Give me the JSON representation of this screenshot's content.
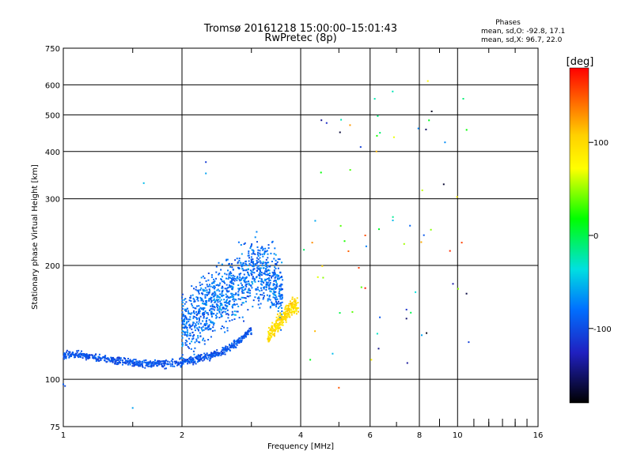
{
  "chart_data": {
    "type": "scatter",
    "title": "Tromsø 20161218 15:00:00–15:01:43",
    "subtitle": "RwPretec (8p)",
    "xlabel": "Frequency [MHz]",
    "ylabel": "Stationary phase Virtual Height [km]",
    "x_scale": "log",
    "y_scale": "log",
    "xlim": [
      1,
      16
    ],
    "ylim": [
      75,
      750
    ],
    "x_ticks": [
      1,
      2,
      4,
      6,
      8,
      10,
      16
    ],
    "y_ticks": [
      75,
      100,
      200,
      300,
      400,
      500,
      600,
      750
    ],
    "grid": true,
    "stats": {
      "heading": "Phases",
      "line_o": "mean, sd,O: -92.8, 17.1",
      "line_x": "mean, sd,X:  96.7, 22.0"
    },
    "colorbar": {
      "label": "[deg]",
      "range": [
        -180,
        180
      ],
      "ticks": [
        100,
        0,
        -100
      ]
    },
    "clusters": [
      {
        "name": "o-trace",
        "phase_deg": -95,
        "x": [
          1.0,
          1.1,
          1.2,
          1.4,
          1.6,
          1.8,
          2.0,
          2.2,
          2.4,
          2.6,
          2.8,
          3.0
        ],
        "y": [
          116,
          116,
          114,
          112,
          110,
          110,
          111,
          113,
          116,
          120,
          127,
          135
        ]
      },
      {
        "name": "o-spread",
        "phase_deg": -80,
        "x": [
          2.0,
          2.2,
          2.4,
          2.6,
          2.8,
          3.0,
          3.2,
          3.4,
          3.6
        ],
        "y": [
          135,
          145,
          155,
          165,
          175,
          185,
          190,
          180,
          165
        ]
      },
      {
        "name": "x-trace",
        "phase_deg": 100,
        "x": [
          3.3,
          3.4,
          3.5,
          3.6,
          3.7,
          3.8
        ],
        "y": [
          130,
          135,
          140,
          145,
          150,
          155
        ]
      }
    ]
  }
}
